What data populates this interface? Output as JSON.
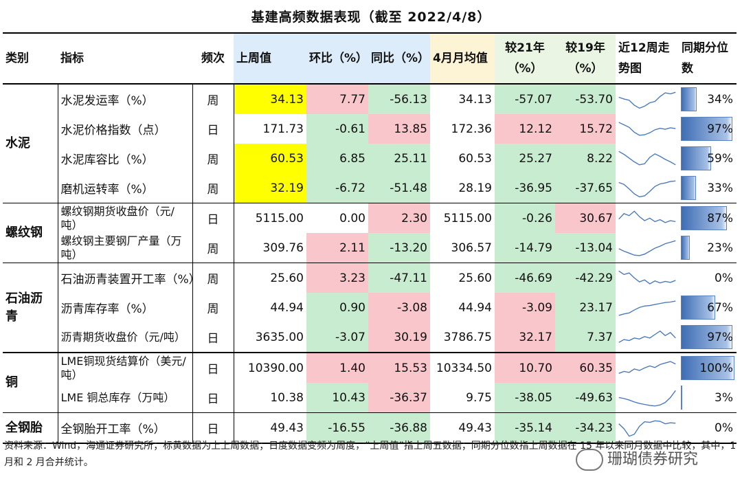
{
  "title": "基建高频数据表现（截至 2022/4/8）",
  "headers": {
    "category": "类别",
    "indicator": "指标",
    "frequency": "频次",
    "last_week": "上周值",
    "wow": "环比（%）",
    "yoy": "同比（%）",
    "month_avg": "4月月均值",
    "vs21": "较21年（%）",
    "vs19": "较19年（%）",
    "trend": "近12周走势图",
    "percentile": "同期分位数"
  },
  "groups": [
    {
      "name": "水泥",
      "rows": [
        {
          "indicator": "水泥发运率（%）",
          "freq": "周",
          "last": "34.13",
          "wow": "7.77",
          "yoy": "-56.13",
          "avg": "34.13",
          "v21": "-57.07",
          "v19": "-53.70",
          "pct": "34%",
          "pct_value": 34,
          "spark": [
            52,
            45,
            40,
            20,
            8,
            16,
            30,
            35,
            55,
            70,
            66,
            72
          ]
        },
        {
          "indicator": "水泥价格指数（点）",
          "freq": "日",
          "last": "171.73",
          "wow": "-0.61",
          "yoy": "13.85",
          "avg": "172.36",
          "v21": "12.12",
          "v19": "15.72",
          "pct": "97%",
          "pct_value": 97,
          "spark": [
            70,
            60,
            50,
            30,
            18,
            20,
            28,
            40,
            46,
            42,
            48,
            45
          ]
        },
        {
          "indicator": "水泥库容比（%）",
          "freq": "周",
          "last": "60.53",
          "wow": "6.85",
          "yoy": "25.11",
          "avg": "60.53",
          "v21": "25.27",
          "v19": "8.22",
          "pct": "59%",
          "pct_value": 59,
          "spark": [
            72,
            60,
            45,
            30,
            18,
            22,
            48,
            62,
            52,
            40,
            30,
            18
          ]
        },
        {
          "indicator": "磨机运转率（%）",
          "freq": "周",
          "last": "32.19",
          "wow": "-6.72",
          "yoy": "-51.48",
          "avg": "28.19",
          "v21": "-36.95",
          "v19": "-37.65",
          "pct": "33%",
          "pct_value": 33,
          "spark": [
            66,
            58,
            40,
            20,
            8,
            12,
            30,
            50,
            60,
            64,
            70,
            72
          ]
        }
      ]
    },
    {
      "name": "螺纹钢",
      "rows": [
        {
          "indicator": "螺纹钢期货收盘价（元/吨）",
          "freq": "日",
          "last": "5115.00",
          "wow": "0.00",
          "yoy": "2.30",
          "avg": "5115.00",
          "v21": "-0.26",
          "v19": "30.67",
          "pct": "87%",
          "pct_value": 87,
          "spark": [
            40,
            62,
            54,
            72,
            50,
            34,
            44,
            30,
            38,
            26,
            34,
            30
          ]
        },
        {
          "indicator": "螺纹钢主要钢厂产量（万吨）",
          "freq": "周",
          "last": "309.76",
          "wow": "2.11",
          "yoy": "-13.20",
          "avg": "306.57",
          "v21": "-14.79",
          "v19": "-13.04",
          "pct": "23%",
          "pct_value": 23,
          "spark": [
            40,
            30,
            22,
            14,
            12,
            18,
            30,
            42,
            50,
            60,
            66,
            72
          ]
        }
      ]
    },
    {
      "name": "石油沥青",
      "rows": [
        {
          "indicator": "石油沥青装置开工率（%）",
          "freq": "周",
          "last": "25.60",
          "wow": "3.23",
          "yoy": "-47.11",
          "avg": "25.60",
          "v21": "-46.69",
          "v19": "-42.29",
          "pct": "0%",
          "pct_value": 0,
          "spark": [
            72,
            58,
            64,
            44,
            28,
            36,
            20,
            32,
            24,
            30,
            26,
            34
          ]
        },
        {
          "indicator": "沥青库存率（%）",
          "freq": "周",
          "last": "44.94",
          "wow": "0.90",
          "yoy": "-3.08",
          "avg": "44.94",
          "v21": "-3.09",
          "v19": "23.17",
          "pct": "67%",
          "pct_value": 67,
          "spark": [
            12,
            18,
            22,
            34,
            44,
            50,
            52,
            56,
            60,
            64,
            66,
            70
          ]
        },
        {
          "indicator": "沥青期货收盘价（元/吨）",
          "freq": "日",
          "last": "3635.00",
          "wow": "-3.07",
          "yoy": "30.19",
          "avg": "3786.75",
          "v21": "32.17",
          "v19": "7.37",
          "pct": "97%",
          "pct_value": 97,
          "spark": [
            22,
            34,
            30,
            40,
            36,
            46,
            40,
            54,
            68,
            50,
            62,
            40
          ]
        }
      ]
    },
    {
      "name": "铜",
      "rows": [
        {
          "indicator": "LME铜现货结算价（美元/吨）",
          "freq": "日",
          "last": "10390.00",
          "wow": "1.40",
          "yoy": "15.53",
          "avg": "10334.50",
          "v21": "10.70",
          "v19": "60.35",
          "pct": "100%",
          "pct_value": 100,
          "spark": [
            22,
            30,
            26,
            40,
            34,
            44,
            52,
            46,
            58,
            64,
            70,
            60
          ]
        },
        {
          "indicator": "LME 铜总库存（万吨）",
          "freq": "日",
          "last": "10.38",
          "wow": "10.43",
          "yoy": "-36.37",
          "avg": "9.75",
          "v21": "-38.05",
          "v19": "-49.63",
          "pct": "3%",
          "pct_value": 3,
          "spark": [
            44,
            40,
            34,
            26,
            20,
            16,
            12,
            10,
            14,
            24,
            44,
            72
          ]
        }
      ]
    },
    {
      "name": "全钢胎",
      "rows": [
        {
          "indicator": "全钢胎开工率（%）",
          "freq": "日",
          "last": "49.43",
          "wow": "-16.55",
          "yoy": "-36.88",
          "avg": "49.43",
          "v21": "-35.14",
          "v19": "-34.23",
          "pct": "0%",
          "pct_value": 0,
          "spark": [
            60,
            40,
            10,
            18,
            50,
            68,
            66,
            72,
            70,
            60,
            64,
            62
          ]
        }
      ]
    }
  ],
  "cell_colors": {
    "yellow": "#ffff00",
    "red": "#f9c6cc",
    "green": "#c8ecd0"
  },
  "note": "资料来源：Wind，海通证券研究所；标黄数据为上上周数据；日度数据变频为周度，“上周值”指上周五数据；同期分位数指上周数据在 15 年以来同月数据中比较，其中，1 月和 2 月合并统计。",
  "watermark": "珊瑚债券研究"
}
